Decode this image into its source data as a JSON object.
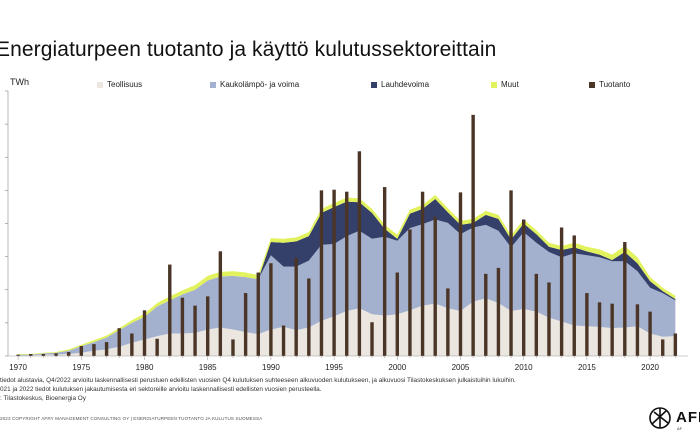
{
  "title": "Energiaturpeen tuotanto ja käyttö kulutussektoreittain",
  "unit": "TWh",
  "legend": [
    {
      "name": "Teollisuus",
      "color": "#ebe7e0"
    },
    {
      "name": "Kaukolämpö- ja voima",
      "color": "#a3b0ce"
    },
    {
      "name": "Lauhdevoima",
      "color": "#34406a"
    },
    {
      "name": "Muut",
      "color": "#e2f25c"
    },
    {
      "name": "Tuotanto",
      "color": "#4a3526"
    }
  ],
  "notes": [
    "tiedot alustavia, Q4/2022 arvioitu laskennallisesti perustuen edellisten vuosien Q4 kulutuksen suhteeseen alkuvuoden kulutukseen, ja alkuvuosi Tilastokeskuksen julkaistuihin lukuihin.",
    "021 ja 2022 tiedot kulutuksen jakautumisesta eri sektoreille arvioitu laskennallisesti edellisten vuosien perusteella.",
    ": Tilastokeskus, Bioenergia Oy"
  ],
  "footer": "2023     COPYRIGHT AFRY MANAGEMENT CONSULTING OY | ENERGIATURPEEN TUOTANTO JA KULUTUS SUOMESSA",
  "logo": {
    "text": "AFR",
    "sub": "AF",
    "icon": "afry-logo-icon"
  },
  "chart_data": {
    "type": "area",
    "title": "Energiaturpeen tuotanto ja käyttö kulutussektoreittain",
    "ylabel": "TWh",
    "ylim": [
      0,
      40
    ],
    "xlim": [
      1969.2,
      2023
    ],
    "x_ticks": [
      1970,
      1975,
      1980,
      1985,
      1990,
      1995,
      2000,
      2005,
      2010,
      2015,
      2020
    ],
    "x": [
      1970,
      1971,
      1972,
      1973,
      1974,
      1975,
      1976,
      1977,
      1978,
      1979,
      1980,
      1981,
      1982,
      1983,
      1984,
      1985,
      1986,
      1987,
      1988,
      1989,
      1990,
      1991,
      1992,
      1993,
      1994,
      1995,
      1996,
      1997,
      1998,
      1999,
      2000,
      2001,
      2002,
      2003,
      2004,
      2005,
      2006,
      2007,
      2008,
      2009,
      2010,
      2011,
      2012,
      2013,
      2014,
      2015,
      2016,
      2017,
      2018,
      2019,
      2020,
      2021,
      2022
    ],
    "stacked_series": [
      {
        "name": "Teollisuus",
        "color": "#ebe7e0",
        "values": [
          0.1,
          0.1,
          0.2,
          0.2,
          0.3,
          0.5,
          0.8,
          1.0,
          1.4,
          2.0,
          2.5,
          3.0,
          3.4,
          3.4,
          3.5,
          4.0,
          4.3,
          4.0,
          3.6,
          3.3,
          4.0,
          4.4,
          3.9,
          4.3,
          5.3,
          6.0,
          6.8,
          7.2,
          6.3,
          6.1,
          6.3,
          6.9,
          7.6,
          7.9,
          7.2,
          6.8,
          8.2,
          8.7,
          8.0,
          6.8,
          7.1,
          6.7,
          5.8,
          5.2,
          4.6,
          4.5,
          4.4,
          4.2,
          4.3,
          4.5,
          3.4,
          2.9,
          3.0
        ]
      },
      {
        "name": "Kaukolämpö- ja voima",
        "color": "#a3b0ce",
        "values": [
          0.1,
          0.1,
          0.2,
          0.3,
          0.5,
          1.0,
          1.3,
          1.8,
          2.5,
          3.0,
          3.4,
          4.5,
          5.0,
          5.9,
          6.5,
          7.4,
          7.7,
          8.1,
          8.3,
          8.3,
          11.2,
          9.1,
          9.6,
          10.1,
          11.5,
          10.9,
          11.3,
          11.7,
          11.4,
          11.9,
          11.1,
          12.4,
          12.3,
          12.7,
          12.9,
          11.6,
          11.2,
          11.1,
          10.9,
          9.6,
          11.6,
          10.4,
          9.9,
          9.7,
          10.9,
          10.7,
          10.5,
          10.1,
          10.0,
          8.3,
          6.9,
          6.6,
          5.4
        ]
      },
      {
        "name": "Lauhdevoima",
        "color": "#34406a",
        "values": [
          0,
          0,
          0,
          0,
          0,
          0,
          0,
          0,
          0,
          0,
          0,
          0,
          0,
          0,
          0,
          0,
          0,
          0,
          0,
          0,
          2.0,
          3.6,
          3.8,
          3.7,
          4.8,
          5.6,
          5.2,
          4.3,
          3.9,
          1.2,
          0.3,
          2.2,
          2.3,
          3.1,
          1.6,
          1.4,
          0.7,
          1.5,
          1.8,
          1.2,
          1.3,
          1.3,
          0.8,
          1.1,
          0.9,
          0.6,
          0.4,
          0.2,
          1.4,
          1.2,
          1.0,
          0.3,
          0.2
        ]
      },
      {
        "name": "Muut",
        "color": "#e2f25c",
        "values": [
          0.1,
          0.1,
          0.1,
          0.1,
          0.2,
          0.2,
          0.3,
          0.3,
          0.3,
          0.4,
          0.5,
          0.5,
          0.6,
          0.6,
          0.7,
          0.7,
          0.7,
          0.7,
          0.7,
          0.6,
          0.6,
          0.6,
          0.6,
          0.6,
          0.6,
          0.6,
          0.6,
          0.6,
          0.6,
          0.6,
          0.6,
          0.6,
          0.6,
          0.6,
          0.6,
          0.6,
          0.6,
          0.6,
          0.6,
          0.6,
          0.6,
          0.6,
          0.6,
          0.6,
          0.7,
          0.7,
          0.8,
          0.8,
          0.9,
          0.9,
          0.6,
          0.5,
          0.5
        ]
      }
    ],
    "bar_series": {
      "name": "Tuotanto",
      "color": "#4a3526",
      "values": [
        0.2,
        0.3,
        0.3,
        0.4,
        0.6,
        1.5,
        1.8,
        2.1,
        4.2,
        3.4,
        6.9,
        2.6,
        13.8,
        8.8,
        7.6,
        9.0,
        15.8,
        2.5,
        9.5,
        12.6,
        14.0,
        4.6,
        14.8,
        11.7,
        25.0,
        25.1,
        24.8,
        30.9,
        5.1,
        25.5,
        12.6,
        19.1,
        24.8,
        21.0,
        10.2,
        24.7,
        36.4,
        12.4,
        13.3,
        25.0,
        20.6,
        12.4,
        11.1,
        19.4,
        18.2,
        9.5,
        8.1,
        7.9,
        17.2,
        7.8,
        6.7,
        2.5,
        3.4
      ]
    }
  }
}
